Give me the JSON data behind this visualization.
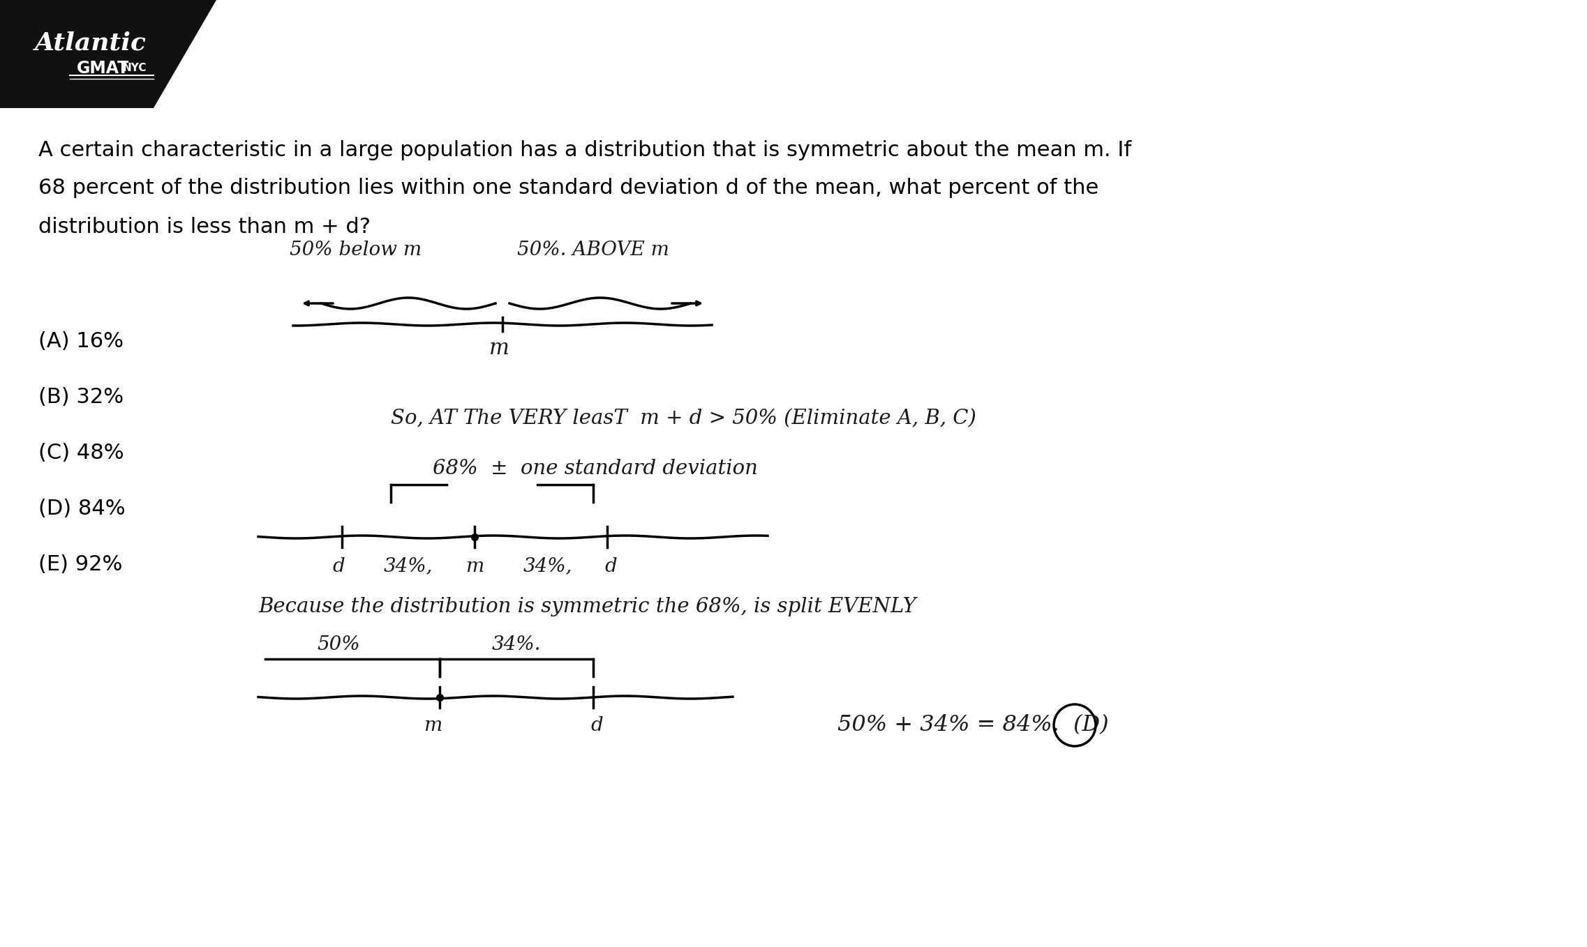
{
  "bg_color": "#ffffff",
  "logo_bg": "#111111",
  "figsize": [
    22.74,
    13.58
  ],
  "dpi": 100,
  "question_text_line1": "A certain characteristic in a large population has a distribution that is symmetric about the mean m. If",
  "question_text_line2": "68 percent of the distribution lies within one standard deviation d of the mean, what percent of the",
  "question_text_line3": "distribution is less than m + d?",
  "choices": [
    "(A) 16%",
    "(B) 32%",
    "(C) 48%",
    "(D) 84%",
    "(E) 92%"
  ],
  "annotation1": "50% below m",
  "annotation2": "50%. ABOVE m",
  "annotation3": "m",
  "annotation4": "So, AT The VERY leasT  m+ d > 50% (Eliminate A,B,C)",
  "annotation5": "68% ± one standard deviation",
  "annotation6": "d  34%, m  34%, d",
  "annotation7": "Because the distribution is symmetric the 68%, is split EVENLY",
  "annotation8": "50%      34%.",
  "annotation9": "50% + 34% = 84%.  (D)",
  "annotation10": "m         d",
  "text_color": "#000000",
  "handwriting_color": "#1a1a1a"
}
